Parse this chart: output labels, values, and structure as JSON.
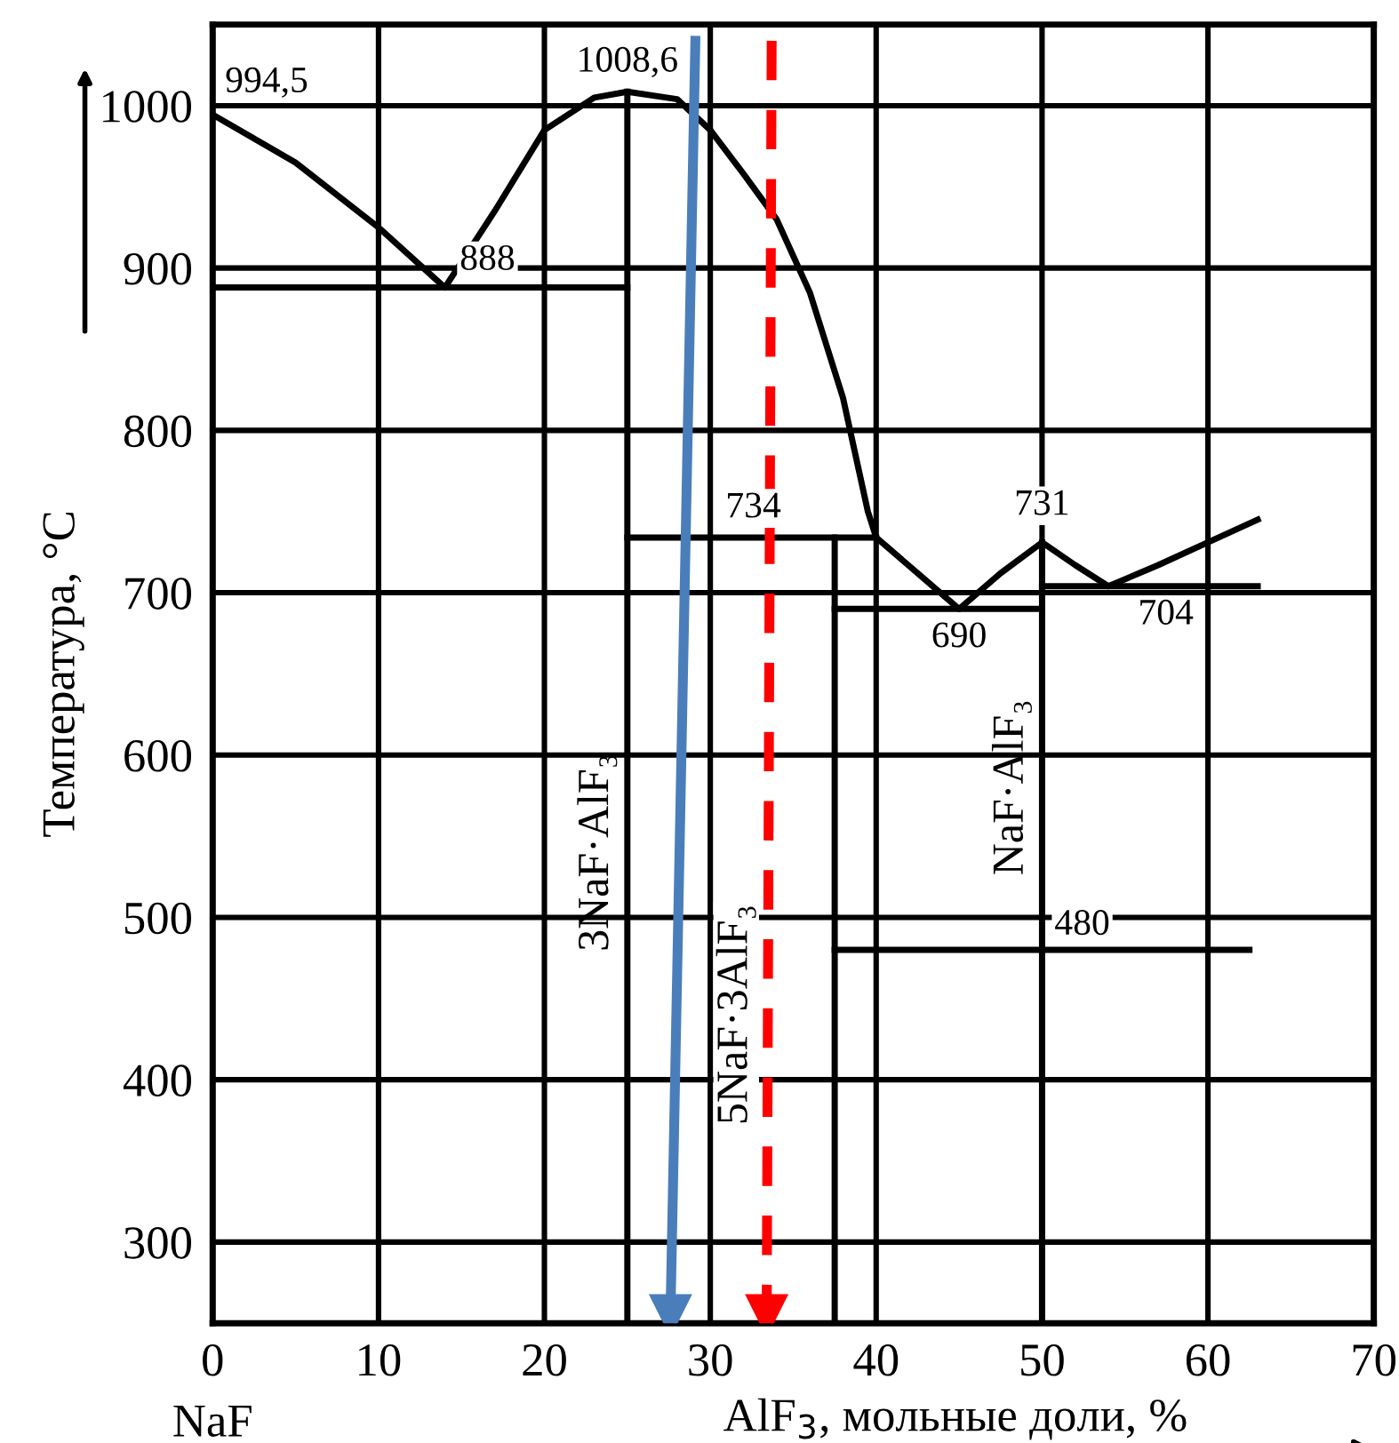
{
  "chart_data": {
    "type": "line",
    "ylabel": "Температура, °C",
    "xlabel": "AlF$_{3}$, мольные доли, %",
    "xlim": [
      0,
      70
    ],
    "ylim": [
      250,
      1050
    ],
    "xticks": [
      0,
      10,
      20,
      30,
      40,
      50,
      60,
      70
    ],
    "yticks": [
      300,
      400,
      500,
      600,
      700,
      800,
      900,
      1000
    ],
    "grid": true,
    "series": [
      {
        "type": "line",
        "color": "#000000",
        "x": [
          0,
          5,
          10,
          14,
          17,
          20,
          23,
          25,
          28,
          30,
          32,
          34,
          36,
          38,
          39.5,
          40,
          42.5,
          45,
          47.5,
          50,
          52,
          54,
          57,
          60,
          63
        ],
        "values": [
          994.5,
          965,
          925,
          888,
          935,
          985,
          1005,
          1008.6,
          1004,
          985,
          958,
          930,
          885,
          820,
          750,
          734,
          712,
          690,
          712,
          731,
          717,
          704,
          717,
          731,
          745
        ]
      },
      {
        "type": "line",
        "color": "#000000",
        "x": [
          25,
          25
        ],
        "values": [
          250,
          1008.6
        ]
      },
      {
        "type": "line",
        "color": "#000000",
        "x": [
          0,
          25
        ],
        "values": [
          888,
          888
        ]
      },
      {
        "type": "line",
        "color": "#000000",
        "x": [
          25,
          40
        ],
        "values": [
          734,
          734
        ]
      },
      {
        "type": "line",
        "color": "#000000",
        "x": [
          37.5,
          37.5
        ],
        "values": [
          250,
          734
        ]
      },
      {
        "type": "line",
        "color": "#000000",
        "x": [
          37.5,
          50
        ],
        "values": [
          690,
          690
        ]
      },
      {
        "type": "line",
        "color": "#000000",
        "x": [
          50,
          50
        ],
        "values": [
          250,
          731
        ]
      },
      {
        "type": "line",
        "color": "#000000",
        "x": [
          50,
          63
        ],
        "values": [
          704,
          704
        ]
      },
      {
        "type": "line",
        "color": "#000000",
        "x": [
          37.5,
          62.5
        ],
        "values": [
          480,
          480
        ]
      },
      {
        "color": "#4a7ebb",
        "marker": "triangle",
        "x": [
          29.1,
          27.6
        ],
        "values": [
          1040,
          255
        ]
      },
      {
        "color": "#ff0000",
        "marker": "triangle",
        "line_style": "dashed",
        "x": [
          33.7,
          33.4
        ],
        "values": [
          1040,
          255
        ]
      }
    ],
    "annotations": [
      {
        "text": "994,5",
        "x": 0,
        "y": 994.5
      },
      {
        "text": "888",
        "x": 14,
        "y": 888
      },
      {
        "text": "1008,6",
        "x": 25,
        "y": 1008.6
      },
      {
        "text": "734",
        "x": 32,
        "y": 734
      },
      {
        "text": "731",
        "x": 50,
        "y": 731
      },
      {
        "text": "690",
        "x": 45,
        "y": 690
      },
      {
        "text": "704",
        "x": 54,
        "y": 704
      },
      {
        "text": "480",
        "x": 50,
        "y": 480
      },
      {
        "text": "3NaF·AlF₃",
        "x": 25,
        "y": 540
      },
      {
        "text": "5NaF·3AlF₃",
        "x": 33,
        "y": 440
      },
      {
        "text": "NaF·AlF₃",
        "x": 50,
        "y": 580
      },
      "NaF"
    ]
  }
}
